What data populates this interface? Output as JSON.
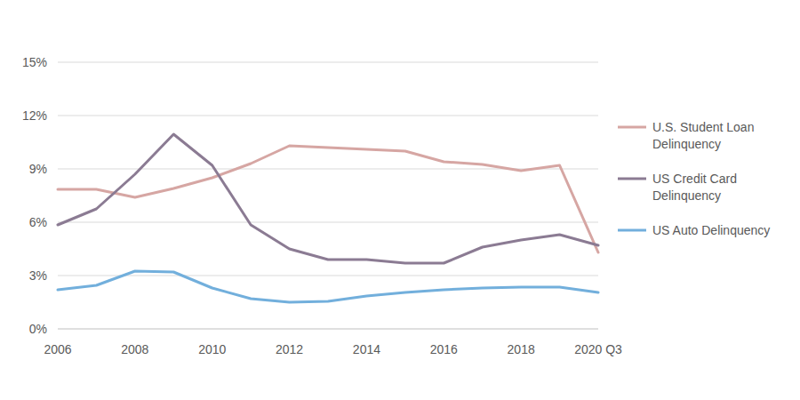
{
  "chart_data": {
    "type": "line",
    "categories": [
      "2006",
      null,
      "2008",
      null,
      "2010",
      null,
      "2012",
      null,
      "2014",
      null,
      "2016",
      null,
      "2018",
      null,
      "2020 Q3"
    ],
    "series": [
      {
        "name": "U.S. Student Loan Delinquency",
        "color": "#d6a6a3",
        "values": [
          7.85,
          7.85,
          7.4,
          7.9,
          8.5,
          9.3,
          10.3,
          10.2,
          10.1,
          10.0,
          9.4,
          9.25,
          8.9,
          9.2,
          4.3
        ]
      },
      {
        "name": "US Credit Card Delinquency",
        "color": "#8b7b93",
        "values": [
          5.85,
          6.75,
          8.7,
          10.95,
          9.2,
          5.85,
          4.5,
          3.9,
          3.9,
          3.7,
          3.7,
          4.6,
          5.0,
          5.3,
          4.7
        ]
      },
      {
        "name": "US Auto Delinquency",
        "color": "#72afdc",
        "values": [
          2.2,
          2.45,
          3.25,
          3.2,
          2.3,
          1.7,
          1.5,
          1.55,
          1.85,
          2.05,
          2.2,
          2.3,
          2.35,
          2.35,
          2.05
        ]
      }
    ],
    "ylim": [
      0,
      15
    ],
    "yticks": [
      {
        "value": 0,
        "label": "0%"
      },
      {
        "value": 3,
        "label": "3%"
      },
      {
        "value": 6,
        "label": "6%"
      },
      {
        "value": 9,
        "label": "9%"
      },
      {
        "value": 12,
        "label": "12%"
      },
      {
        "value": 15,
        "label": "15%"
      }
    ],
    "grid": true,
    "legend": "right"
  }
}
